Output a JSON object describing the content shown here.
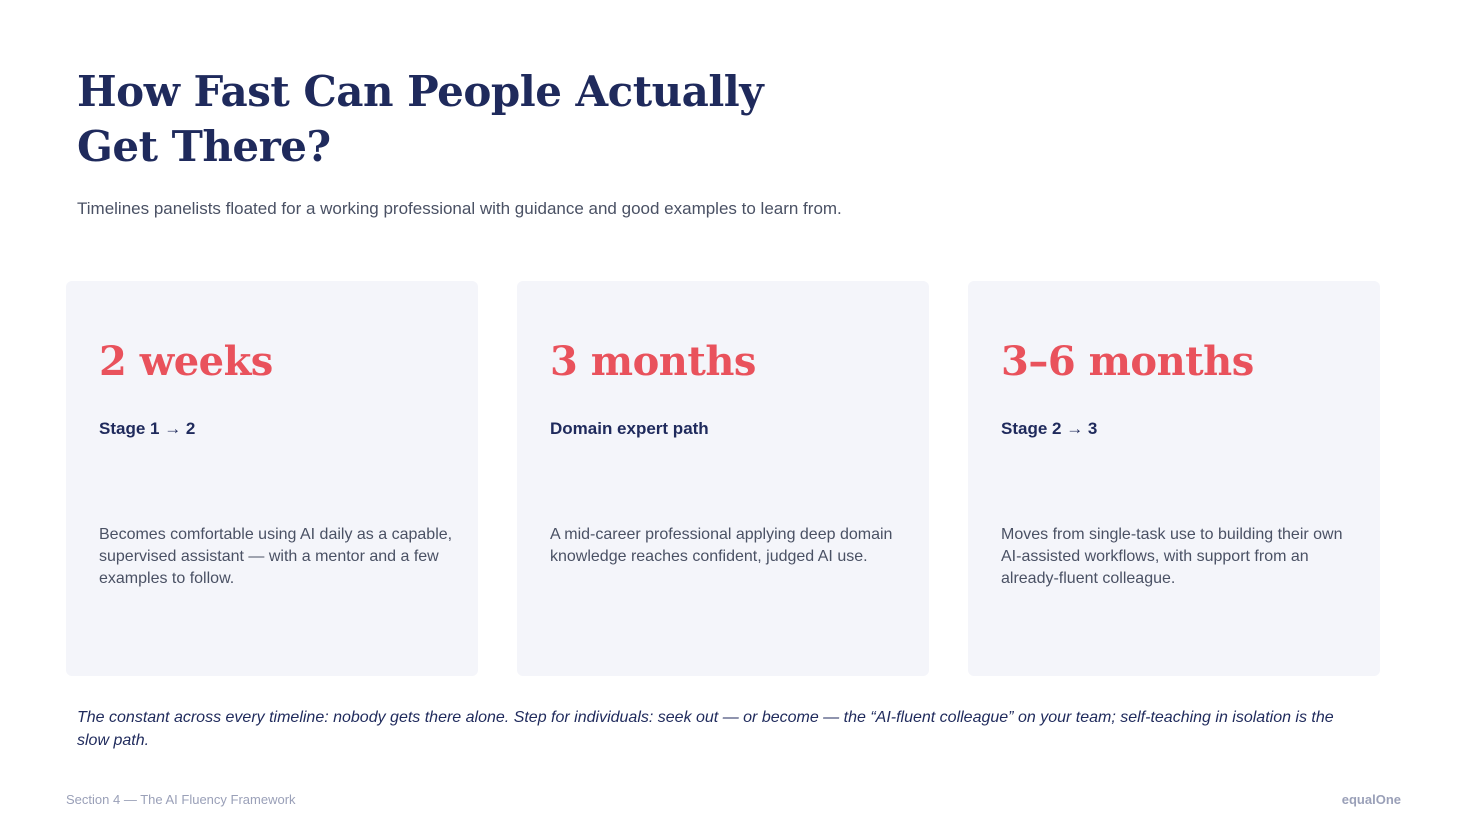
{
  "header": {
    "title_line1": "How Fast Can People Actually",
    "title_line2": "Get There?",
    "subtitle": "Timelines panelists floated for a working professional with guidance and good examples to learn from."
  },
  "accent_color": "#e9525c",
  "cards": [
    {
      "metric": "2 weeks",
      "stage": "Stage 1 → 2",
      "description": "Becomes comfortable using AI daily as a capable, supervised assistant — with a mentor and a few examples to follow."
    },
    {
      "metric": "3 months",
      "stage": "Domain expert path",
      "description": "A mid-career professional applying deep domain knowledge reaches confident, judged AI use."
    },
    {
      "metric": "3–6 months",
      "stage": "Stage 2 → 3",
      "description": "Moves from single-task use to building their own AI-assisted workflows, with support from an already-fluent colleague."
    }
  ],
  "footnote": "The constant across every timeline: nobody gets there alone. Step for individuals: seek out — or become — the “AI-fluent colleague” on your team; self-teaching in isolation is the slow path.",
  "footer": {
    "section": "Section 4 — The AI Fluency Framework",
    "brand": "equalOne"
  }
}
